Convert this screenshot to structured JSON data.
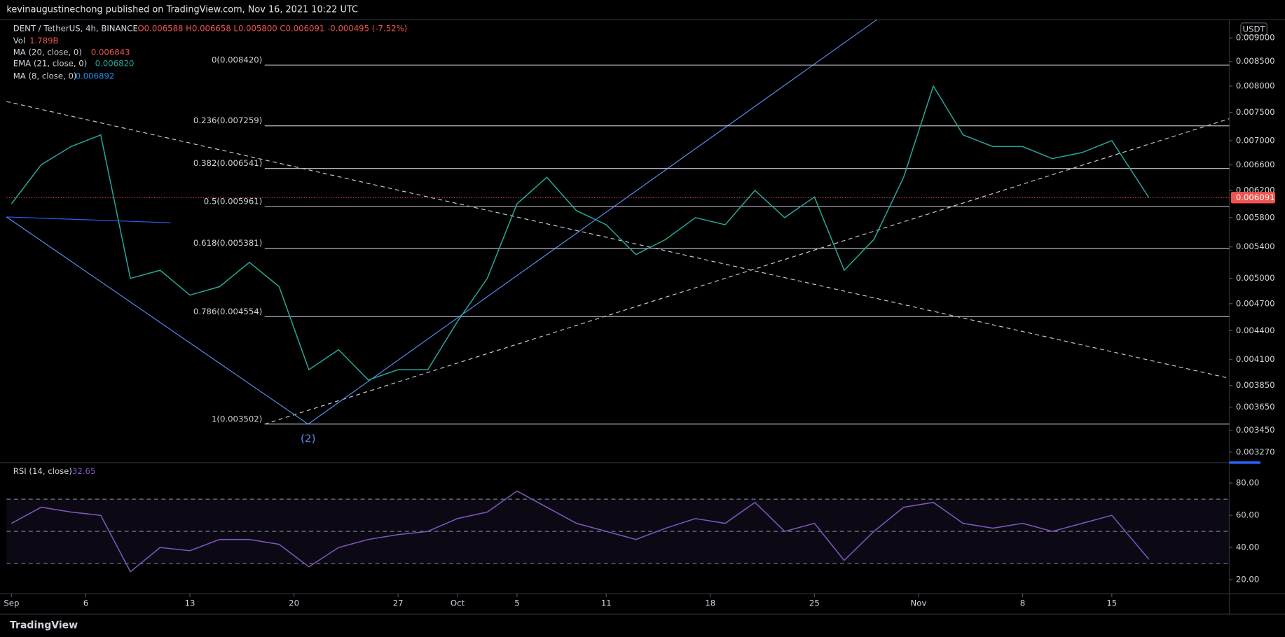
{
  "header": {
    "publisher": "kevinaugustinechong published on TradingView.com, Nov 16, 2021 10:22 UTC",
    "footer": "TradingView"
  },
  "legend": {
    "symbol": "DENT / TetherUS, 4h, BINANCE",
    "ohlc": "O0.006588 H0.006658 L0.005800 C0.006091 -0.000495 (-7.52%)",
    "indicators": [
      {
        "name": "Vol",
        "value": "1.789B"
      },
      {
        "name": "MA (20, close, 0)",
        "value": "0.006843"
      },
      {
        "name": "EMA (21, close, 0)",
        "value": "0.006820"
      },
      {
        "name": "MA (8, close, 0)",
        "value": "0.006892"
      }
    ],
    "currency": "USDT",
    "wave": "(2)"
  },
  "chart_data": [
    {
      "type": "line",
      "log_scale": true,
      "x": [
        0,
        2,
        4,
        6,
        8,
        10,
        12,
        14,
        16,
        18,
        20,
        22,
        24,
        26,
        28,
        30,
        32,
        34,
        36,
        38,
        40,
        42,
        44,
        46,
        48,
        50,
        52,
        54,
        56,
        58,
        60,
        62,
        64,
        66,
        68,
        70,
        72,
        74,
        76.5
      ],
      "series": [
        {
          "name": "DENT / TetherUS",
          "color": "#26a69a",
          "values": [
            0.006,
            0.0066,
            0.0069,
            0.0071,
            0.005,
            0.0051,
            0.0048,
            0.0049,
            0.0052,
            0.0049,
            0.004,
            0.0042,
            0.0039,
            0.004,
            0.004,
            0.0045,
            0.005,
            0.006,
            0.0064,
            0.0059,
            0.0057,
            0.0053,
            0.0055,
            0.0058,
            0.0057,
            0.0062,
            0.0058,
            0.0061,
            0.0051,
            0.0055,
            0.0064,
            0.008,
            0.0071,
            0.0069,
            0.0069,
            0.0067,
            0.0068,
            0.007,
            0.006091
          ]
        }
      ],
      "xlim": [
        -0.33,
        81.9
      ],
      "xticks": [
        {
          "value": 0,
          "label": "Sep"
        },
        {
          "value": 5,
          "label": "6"
        },
        {
          "value": 12,
          "label": "13"
        },
        {
          "value": 19,
          "label": "20"
        },
        {
          "value": 26,
          "label": "27"
        },
        {
          "value": 30,
          "label": "Oct"
        },
        {
          "value": 34,
          "label": "5"
        },
        {
          "value": 40,
          "label": "11"
        },
        {
          "value": 47,
          "label": "18"
        },
        {
          "value": 54,
          "label": "25"
        },
        {
          "value": 61,
          "label": "Nov"
        },
        {
          "value": 68,
          "label": "8"
        },
        {
          "value": 74,
          "label": "15"
        }
      ],
      "ylim": [
        0.0032,
        0.00941
      ],
      "yticks": [
        {
          "value": 0.009,
          "label": "0.009000"
        },
        {
          "value": 0.0085,
          "label": "0.008500"
        },
        {
          "value": 0.008,
          "label": "0.008000"
        },
        {
          "value": 0.0075,
          "label": "0.007500"
        },
        {
          "value": 0.007,
          "label": "0.007000"
        },
        {
          "value": 0.0066,
          "label": "0.006600"
        },
        {
          "value": 0.0062,
          "label": "0.006200"
        },
        {
          "value": 0.0058,
          "label": "0.005800"
        },
        {
          "value": 0.0054,
          "label": "0.005400"
        },
        {
          "value": 0.005,
          "label": "0.005000"
        },
        {
          "value": 0.0047,
          "label": "0.004700"
        },
        {
          "value": 0.0044,
          "label": "0.004400"
        },
        {
          "value": 0.0041,
          "label": "0.004100"
        },
        {
          "value": 0.00385,
          "label": "0.003850"
        },
        {
          "value": 0.00365,
          "label": "0.003650"
        },
        {
          "value": 0.00345,
          "label": "0.003450"
        },
        {
          "value": 0.00327,
          "label": "0.003270"
        }
      ],
      "fib_levels": [
        {
          "value": 0.00842,
          "label": "0(0.008420)"
        },
        {
          "value": 0.007259,
          "label": "0.236(0.007259)"
        },
        {
          "value": 0.006541,
          "label": "0.382(0.006541)"
        },
        {
          "value": 0.005961,
          "label": "0.5(0.005961)"
        },
        {
          "value": 0.005381,
          "label": "0.618(0.005381)"
        },
        {
          "value": 0.004554,
          "label": "0.786(0.004554)"
        },
        {
          "value": 0.003502,
          "label": "1(0.003502)"
        }
      ]
    },
    {
      "type": "line",
      "title": "RSI (14, close)",
      "x": [
        0,
        2,
        4,
        6,
        8,
        10,
        12,
        14,
        16,
        18,
        20,
        22,
        24,
        26,
        28,
        30,
        32,
        34,
        36,
        38,
        40,
        42,
        44,
        46,
        48,
        50,
        52,
        54,
        56,
        58,
        60,
        62,
        64,
        66,
        68,
        70,
        72,
        74,
        76.5
      ],
      "series": [
        {
          "name": "RSI",
          "color": "#7e57c2",
          "values": [
            55,
            65,
            62,
            60,
            25,
            40,
            38,
            45,
            45,
            42,
            28,
            40,
            45,
            48,
            50,
            58,
            62,
            75,
            65,
            55,
            50,
            45,
            52,
            58,
            55,
            68,
            50,
            55,
            32,
            50,
            65,
            68,
            55,
            52,
            55,
            50,
            55,
            60,
            32.65
          ]
        }
      ],
      "xlim": [
        -0.33,
        81.9
      ],
      "ylim": [
        12.4,
        92.2
      ],
      "yticks": [
        {
          "value": 20,
          "label": "20.00"
        },
        {
          "value": 40,
          "label": "40.00"
        },
        {
          "value": 60,
          "label": "60.00"
        },
        {
          "value": 80,
          "label": "80.00"
        }
      ],
      "bands": [
        30,
        50,
        70
      ]
    }
  ]
}
